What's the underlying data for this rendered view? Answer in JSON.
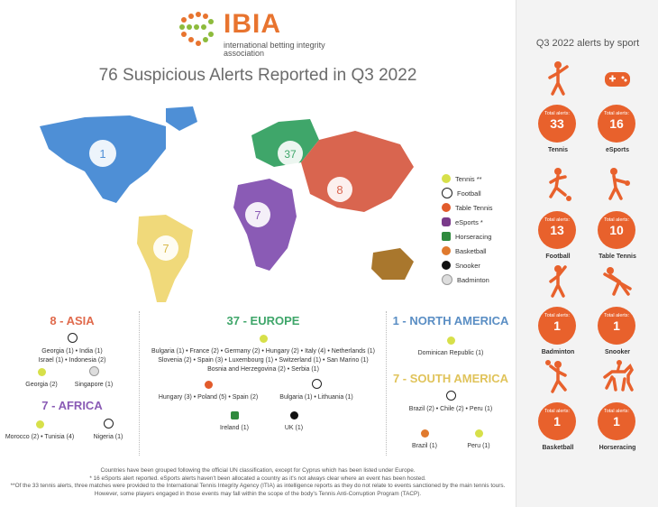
{
  "logo": {
    "name": "IBIA",
    "sub": "international betting integrity association"
  },
  "title": "76 Suspicious Alerts Reported in Q3 2022",
  "map": {
    "badges": {
      "north_america": "1",
      "south_america": "7",
      "europe": "37",
      "africa": "7",
      "asia": "8"
    }
  },
  "legend": [
    {
      "label": "Tennis **",
      "color": "#d7e04a"
    },
    {
      "label": "Football",
      "color": "#222222"
    },
    {
      "label": "Table Tennis",
      "color": "#e25b2b"
    },
    {
      "label": "eSports *",
      "color": "#7a3a8a"
    },
    {
      "label": "Horseracing",
      "color": "#2f8a3d"
    },
    {
      "label": "Basketball",
      "color": "#e07a2e"
    },
    {
      "label": "Snooker",
      "color": "#111111"
    },
    {
      "label": "Badminton",
      "color": "#bbbbbb"
    }
  ],
  "asia": {
    "heading": "8 - ASIA",
    "football": "Georgia (1) • India (1)",
    "football2": "Israel (1) • Indonesia (2)",
    "tennis": "Georgia (2)",
    "badminton": "Singapore (1)"
  },
  "africa": {
    "heading": "7 - AFRICA",
    "tennis": "Morocco (2) • Tunisia (4)",
    "football": "Nigeria (1)"
  },
  "europe": {
    "heading": "37 - EUROPE",
    "tennis1": "Bulgaria (1) • France (2) • Germany (2) • Hungary (2) • Italy (4) • Netherlands (1)",
    "tennis2": "Slovenia (2) • Spain (3) • Luxembourg (1) • Switzerland (1) • San Marino (1)",
    "tennis3": "Bosnia and Herzegovina (2) • Serbia (1)",
    "tabletennis": "Hungary (3) • Poland (5) • Spain (2)",
    "football": "Bulgaria (1) • Lithuania (1)",
    "horseracing": "Ireland (1)",
    "snooker": "UK (1)"
  },
  "north_america": {
    "heading": "1 - NORTH AMERICA",
    "tennis": "Dominican Republic (1)"
  },
  "south_america": {
    "heading": "7 - SOUTH AMERICA",
    "football": "Brazil (2) • Chile (2) • Peru (1)",
    "basketball": "Brazil (1)",
    "tennis": "Peru (1)"
  },
  "footnotes": {
    "line1": "Countries have been grouped following the official UN classification, except for Cyprus which has been listed under Europe.",
    "line2": "* 16 eSports alert reported. eSports alerts haven't been allocated a country as it's not always clear where an event has been hosted.",
    "line3": "**Of the 33 tennis alerts, three matches were provided to the International Tennis Integrity Agency (ITIA) as intelligence reports as they do not relate to events sanctioned by the main tennis tours.",
    "line4": "However, some players engaged in those events may fall within the scope of the body's Tennis Anti-Corruption Program (TACP)."
  },
  "sidebar": {
    "title": "Q3 2022 alerts by sport",
    "total_label": "Total alerts:",
    "sports": [
      {
        "name": "Tennis",
        "value": "33",
        "icon": "tennis-player-icon"
      },
      {
        "name": "eSports",
        "value": "16",
        "icon": "gamepad-icon"
      },
      {
        "name": "Football",
        "value": "13",
        "icon": "football-player-icon"
      },
      {
        "name": "Table Tennis",
        "value": "10",
        "icon": "table-tennis-player-icon"
      },
      {
        "name": "Badminton",
        "value": "1",
        "icon": "badminton-player-icon"
      },
      {
        "name": "Snooker",
        "value": "1",
        "icon": "snooker-player-icon"
      },
      {
        "name": "Basketball",
        "value": "1",
        "icon": "basketball-player-icon"
      },
      {
        "name": "Horseracing",
        "value": "1",
        "icon": "horse-rider-icon"
      }
    ]
  }
}
